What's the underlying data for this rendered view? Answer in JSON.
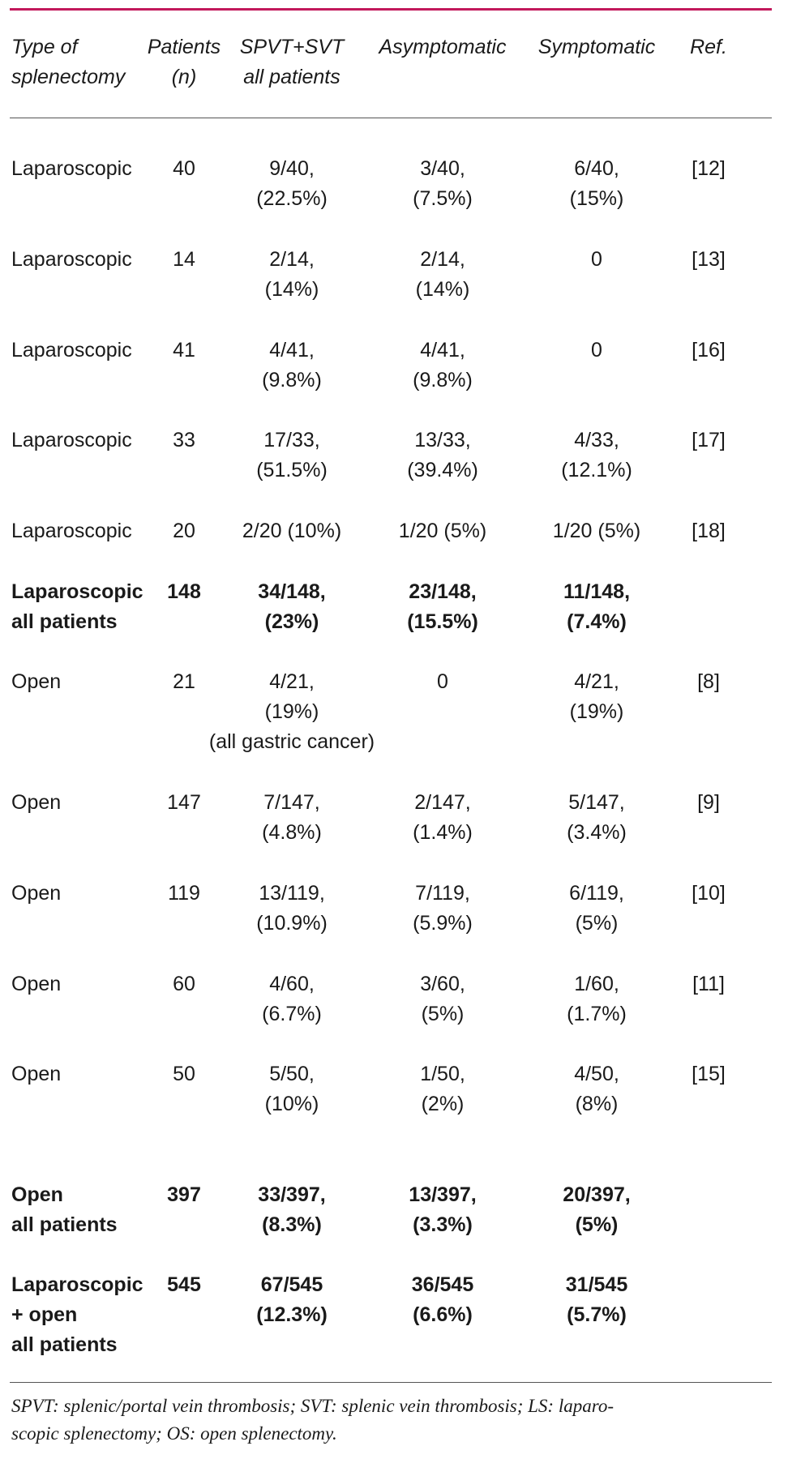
{
  "table": {
    "header": [
      [
        "Type of",
        "splenectomy"
      ],
      [
        "Patients",
        "(n)"
      ],
      [
        "SPVT+SVT",
        "all patients"
      ],
      [
        "Asymptomatic"
      ],
      [
        "Symptomatic"
      ],
      [
        "Ref."
      ]
    ],
    "rows": [
      {
        "cells": [
          [
            "Laparoscopic"
          ],
          [
            "40"
          ],
          [
            "9/40,",
            "(22.5%)"
          ],
          [
            "3/40,",
            "(7.5%)"
          ],
          [
            "6/40,",
            "(15%)"
          ],
          [
            "[12]"
          ]
        ]
      },
      {
        "cells": [
          [
            "Laparoscopic"
          ],
          [
            "14"
          ],
          [
            "2/14,",
            "(14%)"
          ],
          [
            "2/14,",
            "(14%)"
          ],
          [
            "0"
          ],
          [
            "[13]"
          ]
        ]
      },
      {
        "cells": [
          [
            "Laparoscopic"
          ],
          [
            "41"
          ],
          [
            "4/41,",
            "(9.8%)"
          ],
          [
            "4/41,",
            "(9.8%)"
          ],
          [
            "0"
          ],
          [
            "[16]"
          ]
        ]
      },
      {
        "cells": [
          [
            "Laparoscopic"
          ],
          [
            "33"
          ],
          [
            "17/33,",
            "(51.5%)"
          ],
          [
            "13/33,",
            "(39.4%)"
          ],
          [
            "4/33,",
            "(12.1%)"
          ],
          [
            "[17]"
          ]
        ]
      },
      {
        "cells": [
          [
            "Laparoscopic"
          ],
          [
            "20"
          ],
          [
            "2/20 (10%)"
          ],
          [
            "1/20 (5%)"
          ],
          [
            "1/20 (5%)"
          ],
          [
            "[18]"
          ]
        ]
      },
      {
        "bold": true,
        "cells": [
          [
            "Laparoscopic",
            "all patients"
          ],
          [
            "148"
          ],
          [
            "34/148,",
            "(23%)"
          ],
          [
            "23/148,",
            "(15.5%)"
          ],
          [
            "11/148,",
            "(7.4%)"
          ]
        ]
      },
      {
        "cells": [
          [
            "Open"
          ],
          [
            "21"
          ],
          [
            "4/21,",
            "(19%)",
            "(all gastric cancer)"
          ],
          [
            "0"
          ],
          [
            "4/21,",
            "(19%)"
          ],
          [
            "[8]"
          ]
        ]
      },
      {
        "cells": [
          [
            "Open"
          ],
          [
            "147"
          ],
          [
            "7/147,",
            "(4.8%)"
          ],
          [
            "2/147,",
            "(1.4%)"
          ],
          [
            "5/147,",
            "(3.4%)"
          ],
          [
            "[9]"
          ]
        ]
      },
      {
        "cells": [
          [
            "Open"
          ],
          [
            "119"
          ],
          [
            "13/119,",
            "(10.9%)"
          ],
          [
            "7/119,",
            "(5.9%)"
          ],
          [
            "6/119,",
            "(5%)"
          ],
          [
            "[10]"
          ]
        ]
      },
      {
        "cells": [
          [
            "Open"
          ],
          [
            "60"
          ],
          [
            "4/60,",
            "(6.7%)"
          ],
          [
            "3/60,",
            "(5%)"
          ],
          [
            "1/60,",
            "(1.7%)"
          ],
          [
            "[11]"
          ]
        ]
      },
      {
        "cells": [
          [
            "Open"
          ],
          [
            "50"
          ],
          [
            "5/50,",
            "(10%)"
          ],
          [
            "1/50,",
            "(2%)"
          ],
          [
            "4/50,",
            "(8%)"
          ],
          [
            "[15]"
          ]
        ]
      },
      {
        "bold": true,
        "cells": [
          [
            "Open",
            "all patients"
          ],
          [
            "397"
          ],
          [
            "33/397,",
            "(8.3%)"
          ],
          [
            "13/397,",
            "(3.3%)"
          ],
          [
            "20/397,",
            "(5%)"
          ]
        ]
      },
      {
        "bold": true,
        "cells": [
          [
            "Laparoscopic",
            "+ open",
            "all patients"
          ],
          [
            "545"
          ],
          [
            "67/545",
            "(12.3%)"
          ],
          [
            "36/545",
            "(6.6%)"
          ],
          [
            "31/545",
            "(5.7%)"
          ]
        ]
      }
    ],
    "footnote": [
      "SPVT: splenic/portal vein thrombosis; SVT: splenic vein thrombosis; LS: laparo-",
      "scopic splenectomy; OS: open splenectomy."
    ]
  }
}
